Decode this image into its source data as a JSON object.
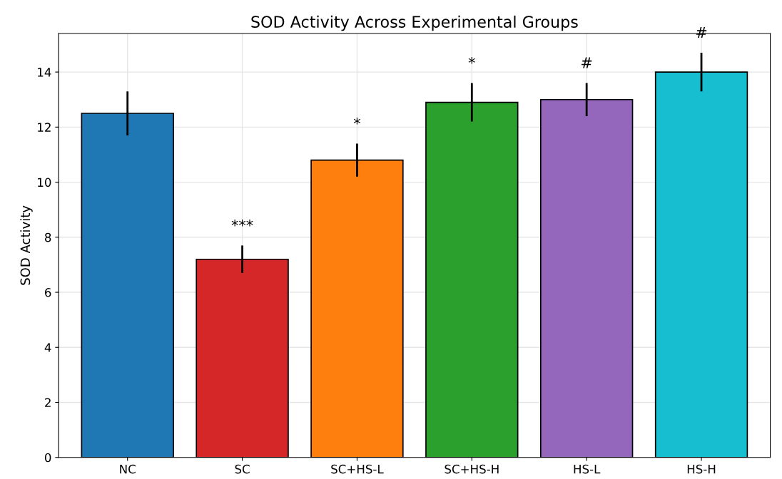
{
  "chart_data": {
    "type": "bar",
    "title": "SOD Activity Across Experimental Groups",
    "ylabel": "SOD Activity",
    "categories": [
      "NC",
      "SC",
      "SC+HS-L",
      "SC+HS-H",
      "HS-L",
      "HS-H"
    ],
    "values": [
      12.5,
      7.2,
      10.8,
      12.9,
      13.0,
      14.0
    ],
    "errors": [
      0.8,
      0.5,
      0.6,
      0.7,
      0.6,
      0.7
    ],
    "colors": [
      "#1f77b4",
      "#d62728",
      "#ff7f0e",
      "#2ca02c",
      "#9467bd",
      "#17becf"
    ],
    "ylim": [
      0,
      15.4
    ],
    "yticks": [
      0,
      2,
      4,
      6,
      8,
      10,
      12,
      14
    ],
    "grid": true,
    "annotations": [
      "***",
      "*",
      "*",
      "#",
      "#"
    ]
  }
}
